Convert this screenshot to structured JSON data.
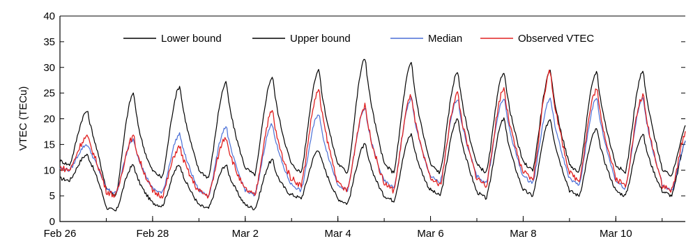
{
  "chart_data": {
    "type": "line",
    "title": "",
    "xlabel": "",
    "ylabel": "VTEC (TECu)",
    "ylim": [
      0,
      40
    ],
    "yticks": [
      0,
      5,
      10,
      15,
      20,
      25,
      30,
      35,
      40
    ],
    "xlim": [
      "2015-02-26",
      "2015-03-11T12:00"
    ],
    "xtick_labels": [
      "Feb 26",
      "Feb 28",
      "Mar 2",
      "Mar 4",
      "Mar 6",
      "Mar 8",
      "Mar 10"
    ],
    "xtick_dates": [
      "2015-02-26",
      "2015-02-28",
      "2015-03-02",
      "2015-03-04",
      "2015-03-06",
      "2015-03-08",
      "2015-03-10"
    ],
    "grid": false,
    "legend_position": "top",
    "colors": {
      "Lower bound": "#000000",
      "Upper bound": "#000000",
      "Median": "#4a6fd6",
      "Observed VTEC": "#e02020"
    },
    "daily_peak_day": [
      "Feb 26",
      "Feb 27",
      "Feb 28",
      "Mar 1",
      "Mar 2",
      "Mar 3",
      "Mar 4",
      "Mar 5",
      "Mar 6",
      "Mar 7",
      "Mar 8",
      "Mar 9",
      "Mar 10",
      "Mar 11"
    ],
    "series": [
      {
        "name": "Lower bound",
        "daily_min": [
          8,
          2,
          3,
          2.5,
          2.5,
          4.5,
          3.5,
          4,
          5,
          4.5,
          5,
          5,
          5,
          5
        ],
        "daily_peak": [
          13,
          11,
          11,
          11,
          12,
          14,
          15,
          17,
          20,
          20,
          20,
          18,
          17,
          17
        ]
      },
      {
        "name": "Upper bound",
        "daily_min": [
          11,
          5,
          8.5,
          8.5,
          9,
          9.5,
          9.5,
          9.5,
          9.5,
          9.5,
          10,
          9.5,
          9.5,
          9
        ],
        "daily_peak": [
          21.5,
          25,
          26.3,
          27,
          28.2,
          29.6,
          31.8,
          30.8,
          29.2,
          29.2,
          29.2,
          29.2,
          29.2,
          20
        ]
      },
      {
        "name": "Median",
        "daily_min": [
          10,
          5.5,
          5.5,
          5,
          5,
          6,
          6,
          6.5,
          7.5,
          7.5,
          7.5,
          7,
          6.5,
          6
        ],
        "daily_peak": [
          15,
          16,
          17,
          18.5,
          19,
          21,
          22,
          24,
          24,
          24,
          24,
          24,
          24,
          17
        ]
      },
      {
        "name": "Observed VTEC",
        "daily_min": [
          10,
          5,
          5,
          5,
          5,
          7,
          6,
          6,
          7,
          7,
          8,
          8,
          7,
          6
        ],
        "daily_peak": [
          16.5,
          16.5,
          14.5,
          16.5,
          21.5,
          25.5,
          22.5,
          24.5,
          25,
          26,
          29.2,
          25.8,
          24.5,
          19
        ]
      }
    ]
  }
}
